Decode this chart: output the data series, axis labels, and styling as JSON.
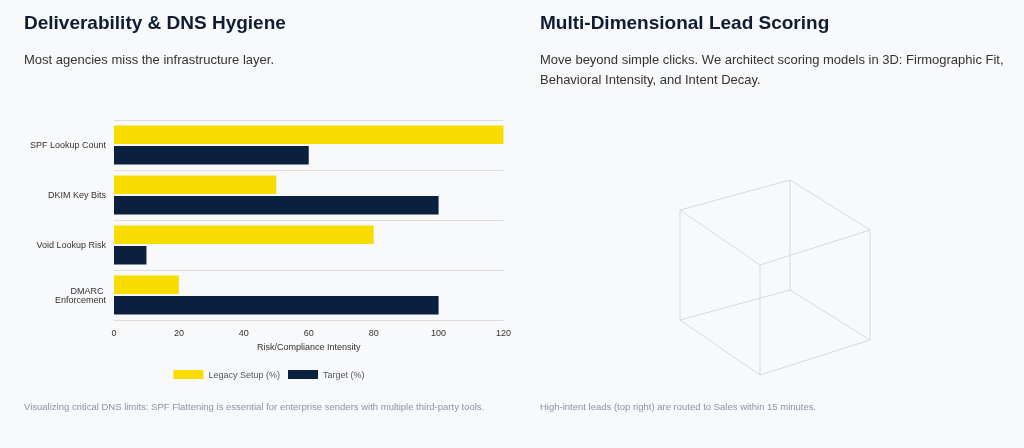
{
  "chart_data": [
    {
      "type": "bar",
      "orientation": "horizontal",
      "title": "Deliverability & DNS Hygiene",
      "subtitle": "Most agencies miss the infrastructure layer.",
      "categories": [
        "SPF Lookup Count",
        "DKIM Key Bits",
        "Void Lookup Risk",
        "DMARC Enforcement"
      ],
      "series": [
        {
          "name": "Legacy Setup (%)",
          "color": "#f9dc00",
          "values": [
            120,
            50,
            80,
            20
          ]
        },
        {
          "name": "Target (%)",
          "color": "#0b1f3f",
          "values": [
            60,
            100,
            10,
            100
          ]
        }
      ],
      "xlim": [
        0,
        120
      ],
      "xticks": [
        0,
        20,
        40,
        60,
        80,
        100,
        120
      ],
      "xlabel": "Risk/Compliance Intensity",
      "grid": "y",
      "legend": "bottom",
      "annotations": [
        "Visualizing critical DNS limits: SPF Flattening is essential for enterprise senders with multiple third-party tools."
      ]
    },
    {
      "type": "other",
      "title": "Multi-Dimensional Lead Scoring",
      "subtitle": "Move beyond simple clicks. We architect scoring models in 3D: Firmographic Fit, Behavioral Intensity, and Intent Decay.",
      "annotations": [
        "High-intent leads (top right) are routed to Sales within 15 minutes."
      ]
    }
  ]
}
